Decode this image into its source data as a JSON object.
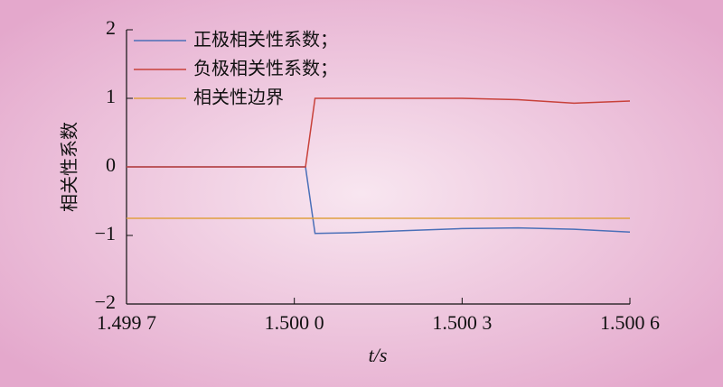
{
  "chart_data": {
    "type": "line",
    "x_label": "t/s",
    "y_label": "相关性系数",
    "x": [
      1.4997,
      1.50002,
      1.500037,
      1.5001,
      1.5002,
      1.5003,
      1.5004,
      1.5005,
      1.5006
    ],
    "series": [
      {
        "name": "正极相关性系数；",
        "color": "#4a6fb8",
        "values": [
          0,
          0,
          -0.97,
          -0.96,
          -0.93,
          -0.9,
          -0.89,
          -0.91,
          -0.95
        ]
      },
      {
        "name": "负极相关性系数；",
        "color": "#c8413a",
        "values": [
          0,
          0,
          1,
          1,
          1,
          1,
          0.98,
          0.93,
          0.96
        ]
      },
      {
        "name": "相关性边界",
        "color": "#e0a040",
        "values": [
          -0.75,
          -0.75,
          -0.75,
          -0.75,
          -0.75,
          -0.75,
          -0.75,
          -0.75,
          -0.75
        ]
      }
    ],
    "xlim": [
      1.4997,
      1.5006
    ],
    "xticks": [
      {
        "value": 1.4997,
        "label": "1.499 7"
      },
      {
        "value": 1.5,
        "label": "1.500 0"
      },
      {
        "value": 1.5003,
        "label": "1.500 3"
      },
      {
        "value": 1.5006,
        "label": "1.500 6"
      }
    ],
    "ylim": [
      -2,
      2
    ],
    "yticks": [
      {
        "value": -2,
        "label": "−2"
      },
      {
        "value": -1,
        "label": "−1"
      },
      0,
      1,
      2
    ]
  }
}
